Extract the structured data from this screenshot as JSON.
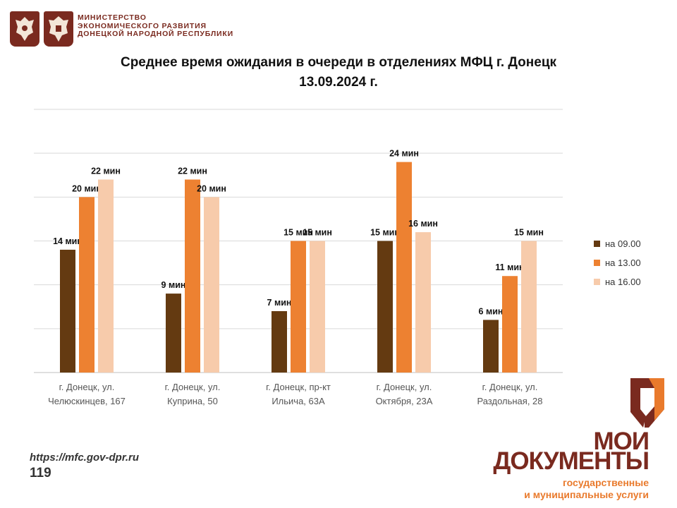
{
  "header": {
    "ministry_lines": [
      "МИНИСТЕРСТВО",
      "ЭКОНОМИЧЕСКОГО РАЗВИТИЯ",
      "ДОНЕЦКОЙ НАРОДНОЙ РЕСПУБЛИКИ"
    ],
    "emblems": [
      "coat-of-arms-russia",
      "coat-of-arms-dpr"
    ]
  },
  "title_line1": "Среднее время ожидания в очереди в отделениях МФЦ г. Донецк",
  "title_line2": "13.09.2024 г.",
  "chart_data": {
    "type": "bar",
    "categories": [
      [
        "г. Донецк, ул.",
        "Челюскинцев, 167"
      ],
      [
        "г. Донецк, ул.",
        "Куприна, 50"
      ],
      [
        "г. Донецк, пр-кт",
        "Ильича, 63А"
      ],
      [
        "г. Донецк, ул.",
        "Октября, 23А"
      ],
      [
        "г. Донецк, ул.",
        "Раздольная, 28"
      ]
    ],
    "series": [
      {
        "name": "на 09.00",
        "color": "#643a11",
        "values": [
          14,
          9,
          7,
          15,
          6
        ],
        "labels": [
          "14 мин",
          "9 мин",
          "7 мин",
          "15 мин",
          "6 мин"
        ]
      },
      {
        "name": "на 13.00",
        "color": "#ed8131",
        "values": [
          20,
          22,
          15,
          24,
          11
        ],
        "labels": [
          "20 мин",
          "22 мин",
          "15 мин",
          "24 мин",
          "11 мин"
        ]
      },
      {
        "name": "на 16.00",
        "color": "#f7cbab",
        "values": [
          22,
          20,
          15,
          16,
          15
        ],
        "labels": [
          "22 мин",
          "20 мин",
          "15 мин",
          "16 мин",
          "15 мин"
        ]
      }
    ],
    "ylim": [
      0,
      30
    ],
    "grid": true,
    "legend": "right"
  },
  "footer": {
    "url": "https://mfc.gov-dpr.ru",
    "page_number": "119"
  },
  "logo": {
    "line1": "МОИ",
    "line2": "ДОКУМЕНТЫ",
    "sub1": "государственные",
    "sub2": "и муниципальные услуги",
    "colors": {
      "dark": "#7a2a1f",
      "orange": "#e97a2c"
    }
  }
}
